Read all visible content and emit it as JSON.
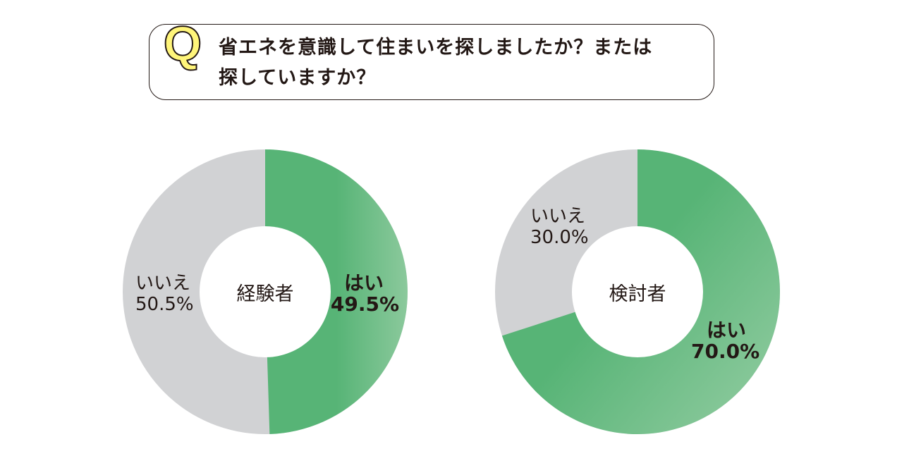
{
  "question": {
    "mark": "Q",
    "line1": "省エネを意識して住まいを探しましたか？または",
    "line2": "探していますか？"
  },
  "colors": {
    "yes_start": "#57b476",
    "yes_end": "#8bc99c",
    "no": "#d1d2d4",
    "q_yellow": "#fff57a",
    "text": "#231815"
  },
  "charts": [
    {
      "center": "経験者",
      "yes": {
        "label": "はい",
        "value": "49.5%"
      },
      "no": {
        "label": "いいえ",
        "value": "50.5%"
      }
    },
    {
      "center": "検討者",
      "yes": {
        "label": "はい",
        "value": "70.0%"
      },
      "no": {
        "label": "いいえ",
        "value": "30.0%"
      }
    }
  ],
  "chart_data": [
    {
      "type": "pie",
      "title": "経験者",
      "categories": [
        "はい",
        "いいえ"
      ],
      "values": [
        49.5,
        50.5
      ],
      "unit": "%",
      "donut": true,
      "start_angle": "12 o'clock, clockwise"
    },
    {
      "type": "pie",
      "title": "検討者",
      "categories": [
        "はい",
        "いいえ"
      ],
      "values": [
        70.0,
        30.0
      ],
      "unit": "%",
      "donut": true,
      "start_angle": "12 o'clock, clockwise"
    }
  ]
}
